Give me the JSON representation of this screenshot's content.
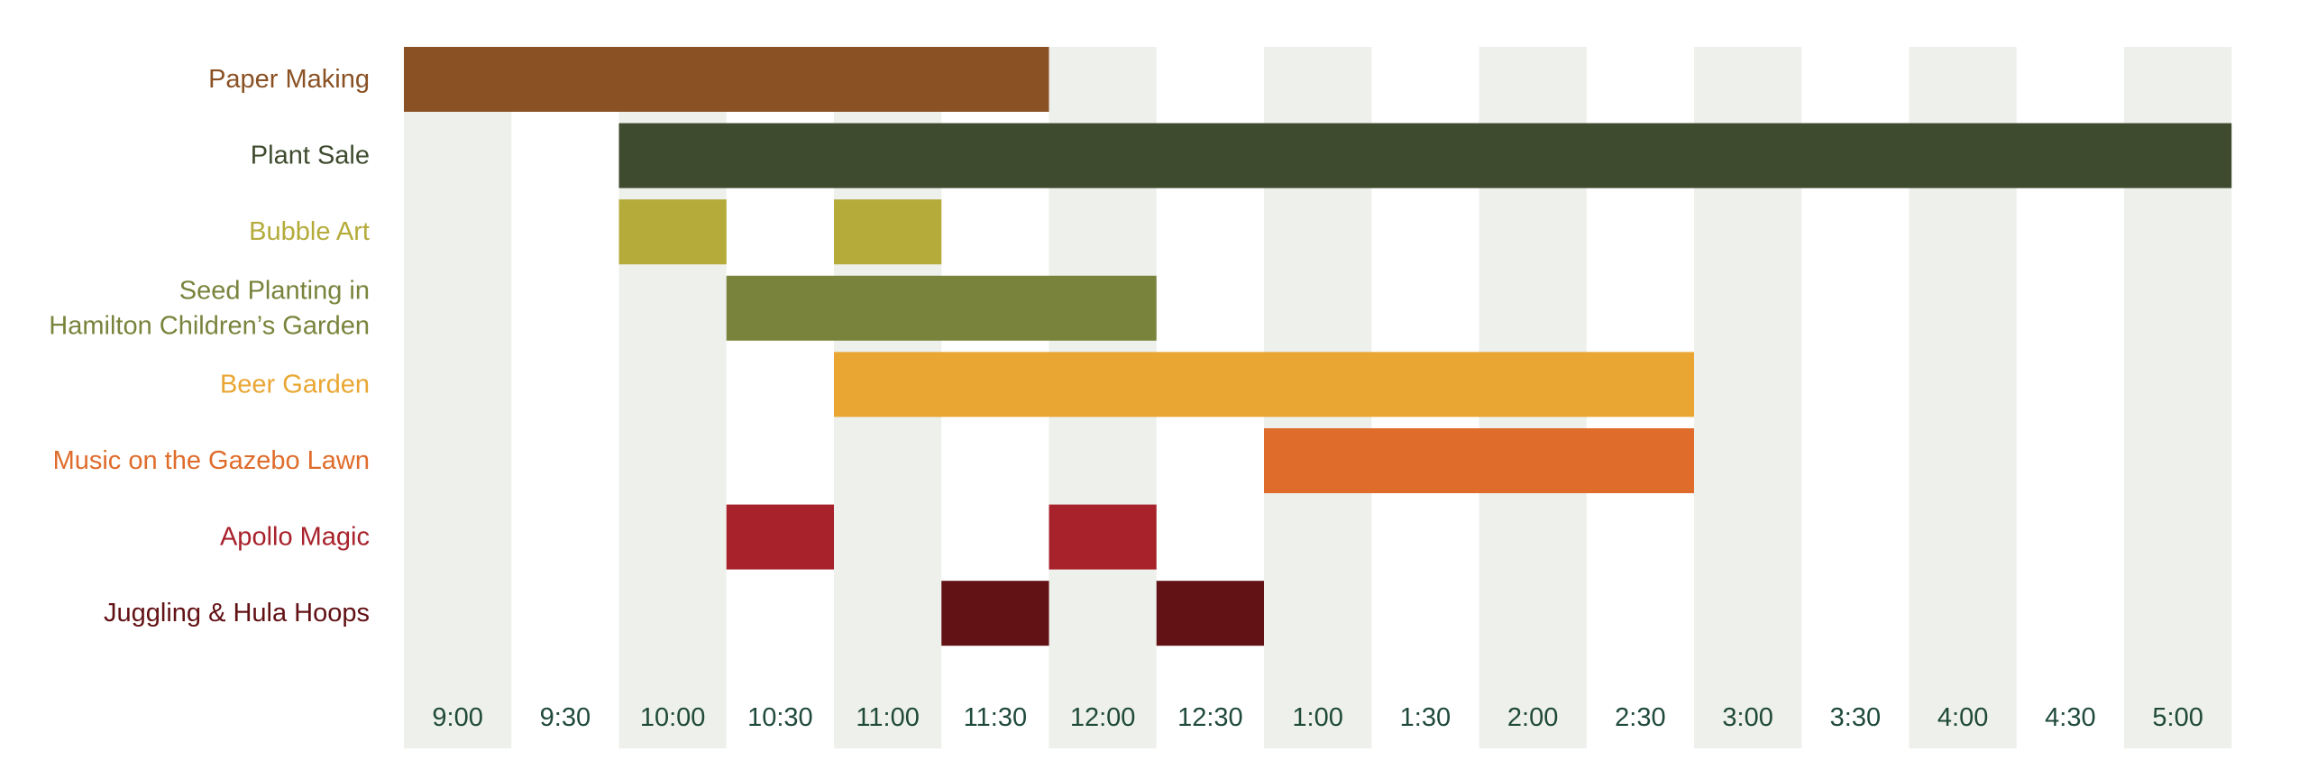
{
  "chart_data": {
    "type": "gantt",
    "title": "",
    "xlabel": "",
    "ylabel": "",
    "x_ticks": [
      "9:00",
      "9:30",
      "10:00",
      "10:30",
      "11:00",
      "11:30",
      "12:00",
      "12:30",
      "1:00",
      "1:30",
      "2:00",
      "2:30",
      "3:00",
      "3:30",
      "4:00",
      "4:30",
      "5:00"
    ],
    "xlim": [
      "9:00",
      "5:30"
    ],
    "grid": "alternating shaded columns",
    "legend": "none",
    "activities": [
      {
        "label_lines": [
          "Paper Making"
        ],
        "color": "#8a5124",
        "sessions": [
          {
            "start": "9:00",
            "end": "12:00"
          }
        ]
      },
      {
        "label_lines": [
          "Plant Sale"
        ],
        "color": "#3f4b2e",
        "sessions": [
          {
            "start": "10:00",
            "end": "5:30"
          }
        ]
      },
      {
        "label_lines": [
          "Bubble Art"
        ],
        "color": "#b4ab3a",
        "sessions": [
          {
            "start": "10:00",
            "end": "10:30"
          },
          {
            "start": "11:00",
            "end": "11:30"
          }
        ]
      },
      {
        "label_lines": [
          "Seed Planting in",
          "Hamilton Children’s Garden"
        ],
        "color": "#7a833c",
        "sessions": [
          {
            "start": "10:30",
            "end": "12:30"
          }
        ]
      },
      {
        "label_lines": [
          "Beer Garden"
        ],
        "color": "#e9a632",
        "sessions": [
          {
            "start": "11:00",
            "end": "3:00"
          }
        ]
      },
      {
        "label_lines": [
          "Music on the Gazebo Lawn"
        ],
        "color": "#df6c2b",
        "sessions": [
          {
            "start": "1:00",
            "end": "3:00"
          }
        ]
      },
      {
        "label_lines": [
          "Apollo Magic"
        ],
        "color": "#a8222c",
        "sessions": [
          {
            "start": "10:30",
            "end": "11:00"
          },
          {
            "start": "12:00",
            "end": "12:30"
          }
        ]
      },
      {
        "label_lines": [
          "Juggling & Hula Hoops"
        ],
        "color": "#621114",
        "sessions": [
          {
            "start": "11:30",
            "end": "12:00"
          },
          {
            "start": "12:30",
            "end": "1:00"
          }
        ]
      }
    ],
    "colors": {
      "column_shade": "#eef0eb",
      "tick_text": "#1f4a3a"
    }
  }
}
